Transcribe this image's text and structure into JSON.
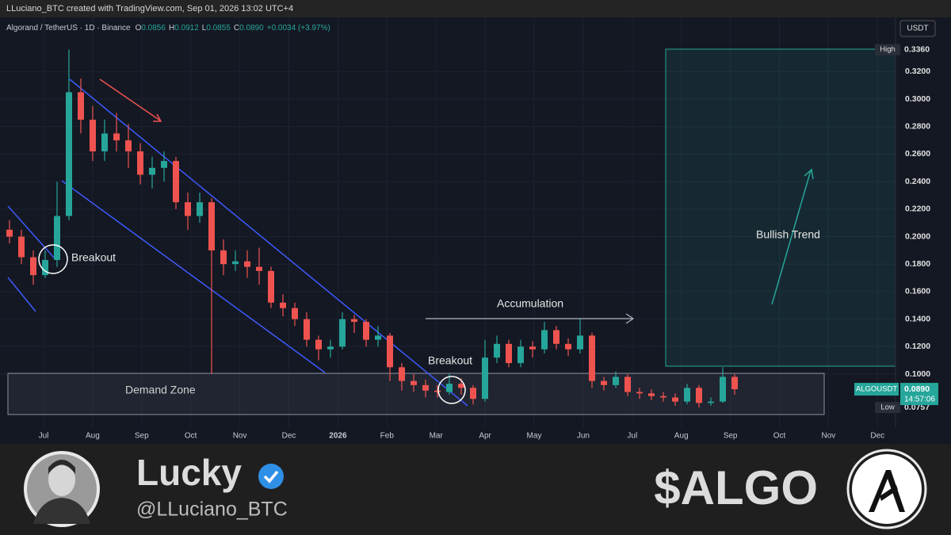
{
  "chart_data": {
    "type": "candlestick",
    "credit": "LLuciano_BTC created with TradingView.com, Sep 01, 2026 13:02 UTC+4",
    "symbol": "Algorand / TetherUS · 1D · Binance",
    "ohlc": [
      {
        "key": "O",
        "value": "0.0856"
      },
      {
        "key": "H",
        "value": "0.0912"
      },
      {
        "key": "L",
        "value": "0.0855"
      },
      {
        "key": "C",
        "value": "0.0890"
      }
    ],
    "change": "+0.0034 (+3.97%)",
    "currency": "USDT",
    "colors": {
      "up": "#26a69a",
      "down": "#ef5350"
    },
    "grid": true,
    "ylim": [
      0.0608,
      0.3594
    ],
    "yticks": [
      {
        "value": 0.1,
        "label": "0.1000"
      },
      {
        "value": 0.12,
        "label": "0.1200"
      },
      {
        "value": 0.14,
        "label": "0.1400"
      },
      {
        "value": 0.16,
        "label": "0.1600"
      },
      {
        "value": 0.18,
        "label": "0.1800"
      },
      {
        "value": 0.2,
        "label": "0.2000"
      },
      {
        "value": 0.22,
        "label": "0.2200"
      },
      {
        "value": 0.24,
        "label": "0.2400"
      },
      {
        "value": 0.26,
        "label": "0.2600"
      },
      {
        "value": 0.28,
        "label": "0.2800"
      },
      {
        "value": 0.3,
        "label": "0.3000"
      },
      {
        "value": 0.32,
        "label": "0.3200"
      }
    ],
    "xlabels": [
      "Jul",
      "Aug",
      "Sep",
      "Oct",
      "Nov",
      "Dec",
      "2026",
      "Feb",
      "Mar",
      "Apr",
      "May",
      "Jun",
      "Jul",
      "Aug",
      "Sep",
      "Oct",
      "Nov",
      "Dec"
    ],
    "high": {
      "label": "High",
      "value": 0.336,
      "value_label": "0.3360"
    },
    "low": {
      "label": "Low",
      "value": 0.0757,
      "value_label": "0.0757"
    },
    "last": {
      "label": "ALGOUSDT",
      "value": 0.089,
      "value_label": "0.0890",
      "countdown": "14:57:06"
    },
    "annotations": [
      "Breakout",
      "Breakout",
      "Demand Zone",
      "Accumulation",
      "Bullish Trend"
    ],
    "candles": [
      [
        0.205,
        0.212,
        0.195,
        0.2
      ],
      [
        0.2,
        0.205,
        0.18,
        0.185
      ],
      [
        0.185,
        0.19,
        0.165,
        0.172
      ],
      [
        0.172,
        0.19,
        0.17,
        0.183
      ],
      [
        0.183,
        0.24,
        0.178,
        0.215
      ],
      [
        0.215,
        0.336,
        0.212,
        0.305
      ],
      [
        0.305,
        0.315,
        0.275,
        0.285
      ],
      [
        0.285,
        0.295,
        0.255,
        0.262
      ],
      [
        0.262,
        0.285,
        0.255,
        0.275
      ],
      [
        0.275,
        0.29,
        0.262,
        0.27
      ],
      [
        0.27,
        0.282,
        0.25,
        0.262
      ],
      [
        0.262,
        0.268,
        0.238,
        0.245
      ],
      [
        0.245,
        0.258,
        0.235,
        0.25
      ],
      [
        0.25,
        0.262,
        0.24,
        0.255
      ],
      [
        0.255,
        0.258,
        0.22,
        0.225
      ],
      [
        0.225,
        0.232,
        0.205,
        0.215
      ],
      [
        0.215,
        0.232,
        0.21,
        0.225
      ],
      [
        0.225,
        0.228,
        0.1,
        0.19
      ],
      [
        0.19,
        0.198,
        0.172,
        0.18
      ],
      [
        0.18,
        0.19,
        0.175,
        0.182
      ],
      [
        0.182,
        0.19,
        0.17,
        0.178
      ],
      [
        0.178,
        0.192,
        0.165,
        0.175
      ],
      [
        0.175,
        0.178,
        0.148,
        0.152
      ],
      [
        0.152,
        0.158,
        0.142,
        0.148
      ],
      [
        0.148,
        0.152,
        0.135,
        0.14
      ],
      [
        0.14,
        0.145,
        0.12,
        0.125
      ],
      [
        0.125,
        0.128,
        0.11,
        0.118
      ],
      [
        0.118,
        0.125,
        0.112,
        0.12
      ],
      [
        0.12,
        0.145,
        0.118,
        0.14
      ],
      [
        0.14,
        0.143,
        0.13,
        0.138
      ],
      [
        0.138,
        0.14,
        0.12,
        0.125
      ],
      [
        0.125,
        0.135,
        0.12,
        0.128
      ],
      [
        0.128,
        0.13,
        0.095,
        0.105
      ],
      [
        0.105,
        0.108,
        0.088,
        0.095
      ],
      [
        0.095,
        0.1,
        0.087,
        0.092
      ],
      [
        0.092,
        0.096,
        0.083,
        0.088
      ],
      [
        0.088,
        0.092,
        0.083,
        0.087
      ],
      [
        0.087,
        0.1,
        0.085,
        0.093
      ],
      [
        0.093,
        0.097,
        0.085,
        0.09
      ],
      [
        0.09,
        0.092,
        0.078,
        0.082
      ],
      [
        0.082,
        0.125,
        0.08,
        0.112
      ],
      [
        0.112,
        0.128,
        0.108,
        0.122
      ],
      [
        0.122,
        0.125,
        0.105,
        0.108
      ],
      [
        0.108,
        0.125,
        0.105,
        0.12
      ],
      [
        0.12,
        0.124,
        0.112,
        0.118
      ],
      [
        0.118,
        0.138,
        0.115,
        0.132
      ],
      [
        0.132,
        0.135,
        0.118,
        0.122
      ],
      [
        0.122,
        0.126,
        0.113,
        0.118
      ],
      [
        0.118,
        0.14,
        0.115,
        0.128
      ],
      [
        0.128,
        0.13,
        0.09,
        0.095
      ],
      [
        0.095,
        0.098,
        0.088,
        0.092
      ],
      [
        0.092,
        0.102,
        0.09,
        0.098
      ],
      [
        0.098,
        0.1,
        0.084,
        0.087
      ],
      [
        0.087,
        0.09,
        0.082,
        0.086
      ],
      [
        0.086,
        0.089,
        0.081,
        0.084
      ],
      [
        0.084,
        0.087,
        0.08,
        0.083
      ],
      [
        0.083,
        0.086,
        0.077,
        0.08
      ],
      [
        0.08,
        0.093,
        0.078,
        0.09
      ],
      [
        0.09,
        0.092,
        0.0757,
        0.079
      ],
      [
        0.079,
        0.083,
        0.077,
        0.08
      ],
      [
        0.08,
        0.105,
        0.079,
        0.098
      ],
      [
        0.098,
        0.1,
        0.085,
        0.089
      ]
    ]
  },
  "profile": {
    "name": "Lucky",
    "handle": "@LLuciano_BTC",
    "ticker": "$ALGO"
  }
}
